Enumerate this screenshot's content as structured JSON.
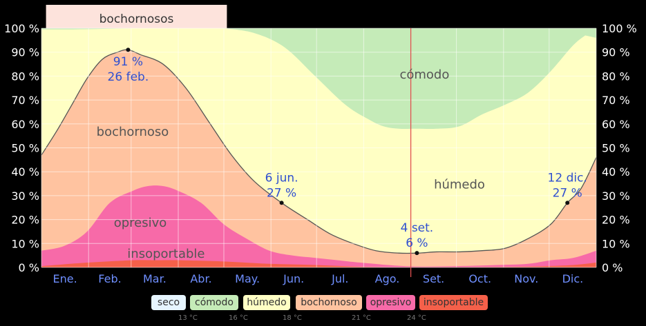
{
  "chart_data": {
    "type": "area",
    "title": "",
    "xlabel": "",
    "ylabel": "",
    "ylim": [
      0,
      100
    ],
    "y_ticks": [
      "0 %",
      "10 %",
      "20 %",
      "30 %",
      "40 %",
      "50 %",
      "60 %",
      "70 %",
      "80 %",
      "90 %",
      "100 %"
    ],
    "months": [
      "Ene.",
      "Feb.",
      "Mar.",
      "Abr.",
      "May.",
      "Jun.",
      "Jul.",
      "Ago.",
      "Set.",
      "Oct.",
      "Nov.",
      "Dic."
    ],
    "top_band": {
      "label": "bochornosos"
    },
    "colors": {
      "seco": "#e6f5ff",
      "comodo": "#c5ebb8",
      "humedo": "#ffffc4",
      "bochornoso": "#ffc3a0",
      "opresivo": "#f76aa8",
      "insoportable": "#f5604a",
      "line": "#555555",
      "today": "#e05050"
    },
    "series": [
      {
        "name": "insoportable",
        "x": [
          0,
          30,
          60,
          75,
          90,
          120,
          150,
          180,
          210,
          240,
          270,
          300,
          330,
          350,
          365
        ],
        "values": [
          0.5,
          2.0,
          3.0,
          3.0,
          3.0,
          2.5,
          1.5,
          1.0,
          0.3,
          0.1,
          0.1,
          0.2,
          0.5,
          1.0,
          2.0
        ]
      },
      {
        "name": "opresivo",
        "x": [
          0,
          15,
          30,
          45,
          60,
          70,
          80,
          90,
          105,
          120,
          135,
          150,
          165,
          180,
          195,
          210,
          240,
          270,
          300,
          320,
          335,
          350,
          365
        ],
        "values": [
          7,
          9,
          15,
          27,
          32,
          34,
          34,
          32,
          27,
          18,
          12,
          7,
          5,
          4,
          3,
          2,
          0.5,
          0.5,
          1,
          1.5,
          3,
          4,
          7
        ]
      },
      {
        "name": "bochornoso",
        "x": [
          0,
          10,
          20,
          30,
          40,
          50,
          57,
          65,
          80,
          95,
          110,
          125,
          140,
          158,
          175,
          190,
          205,
          220,
          235,
          248,
          260,
          275,
          290,
          305,
          320,
          335,
          346,
          355,
          365
        ],
        "values": [
          47,
          57,
          68,
          79,
          87,
          90,
          91,
          89,
          85,
          75,
          61,
          47,
          36,
          27,
          20,
          14,
          10,
          7,
          6,
          6,
          6.5,
          6.5,
          7,
          8,
          12,
          18,
          27,
          33,
          46
        ]
      },
      {
        "name": "comodo",
        "x": [
          120,
          140,
          160,
          180,
          200,
          215,
          225,
          235,
          247,
          260,
          275,
          290,
          305,
          320,
          335,
          350,
          360,
          365
        ],
        "values": [
          100,
          98,
          92,
          80,
          68,
          62,
          59,
          58,
          58,
          58,
          59,
          64,
          68,
          73,
          82,
          93,
          98,
          100
        ]
      }
    ],
    "top_shading": {
      "x": [
        0,
        20,
        40,
        60,
        80,
        100,
        120,
        140,
        330,
        350,
        365
      ],
      "values": [
        99.5,
        99.5,
        99.7,
        100,
        100,
        100,
        100,
        100,
        100,
        98,
        96
      ]
    },
    "annotations": [
      {
        "x": 57,
        "y": 91,
        "date": "26 feb.",
        "pct": "91 %",
        "order": "pct-first",
        "pos": "below"
      },
      {
        "x": 158,
        "y": 27,
        "date": "6 jun.",
        "pct": "27 %",
        "order": "date-first",
        "pos": "above"
      },
      {
        "x": 247,
        "y": 6,
        "date": "4 set.",
        "pct": "6 %",
        "order": "date-first",
        "pos": "above"
      },
      {
        "x": 346,
        "y": 27,
        "date": "12 dic.",
        "pct": "27 %",
        "order": "date-first",
        "pos": "above"
      }
    ],
    "region_labels": [
      {
        "text": "bochornoso",
        "x": 60,
        "y": 55
      },
      {
        "text": "opresivo",
        "x": 65,
        "y": 17
      },
      {
        "text": "insoportable",
        "x": 82,
        "y": 4
      },
      {
        "text": "húmedo",
        "x": 275,
        "y": 33
      },
      {
        "text": "cómodo",
        "x": 252,
        "y": 79
      }
    ],
    "today_x": 243,
    "legend": [
      {
        "key": "seco",
        "label": "seco"
      },
      {
        "key": "comodo",
        "label": "cómodo"
      },
      {
        "key": "humedo",
        "label": "húmedo"
      },
      {
        "key": "bochornoso",
        "label": "bochornoso"
      },
      {
        "key": "opresivo",
        "label": "opresivo"
      },
      {
        "key": "insoportable",
        "label": "insoportable"
      }
    ],
    "legend_temps": [
      "13 °C",
      "16 °C",
      "18 °C",
      "21 °C",
      "24 °C"
    ]
  }
}
